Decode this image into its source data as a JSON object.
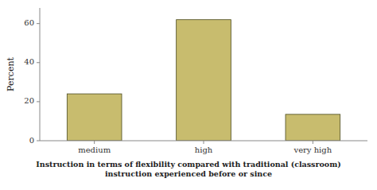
{
  "chart_data": {
    "type": "bar",
    "categories": [
      "medium",
      "high",
      "very high"
    ],
    "values": [
      24.0,
      62.0,
      13.5
    ],
    "color": "#c8bc6e",
    "ylabel": "Percent",
    "xlabel": "Instruction in terms of flexibility compared with traditional (classroom)\ninstruction experienced before or since",
    "ylim": [
      0,
      68
    ],
    "yticks": [
      0,
      20,
      40,
      60
    ],
    "grid": false
  }
}
